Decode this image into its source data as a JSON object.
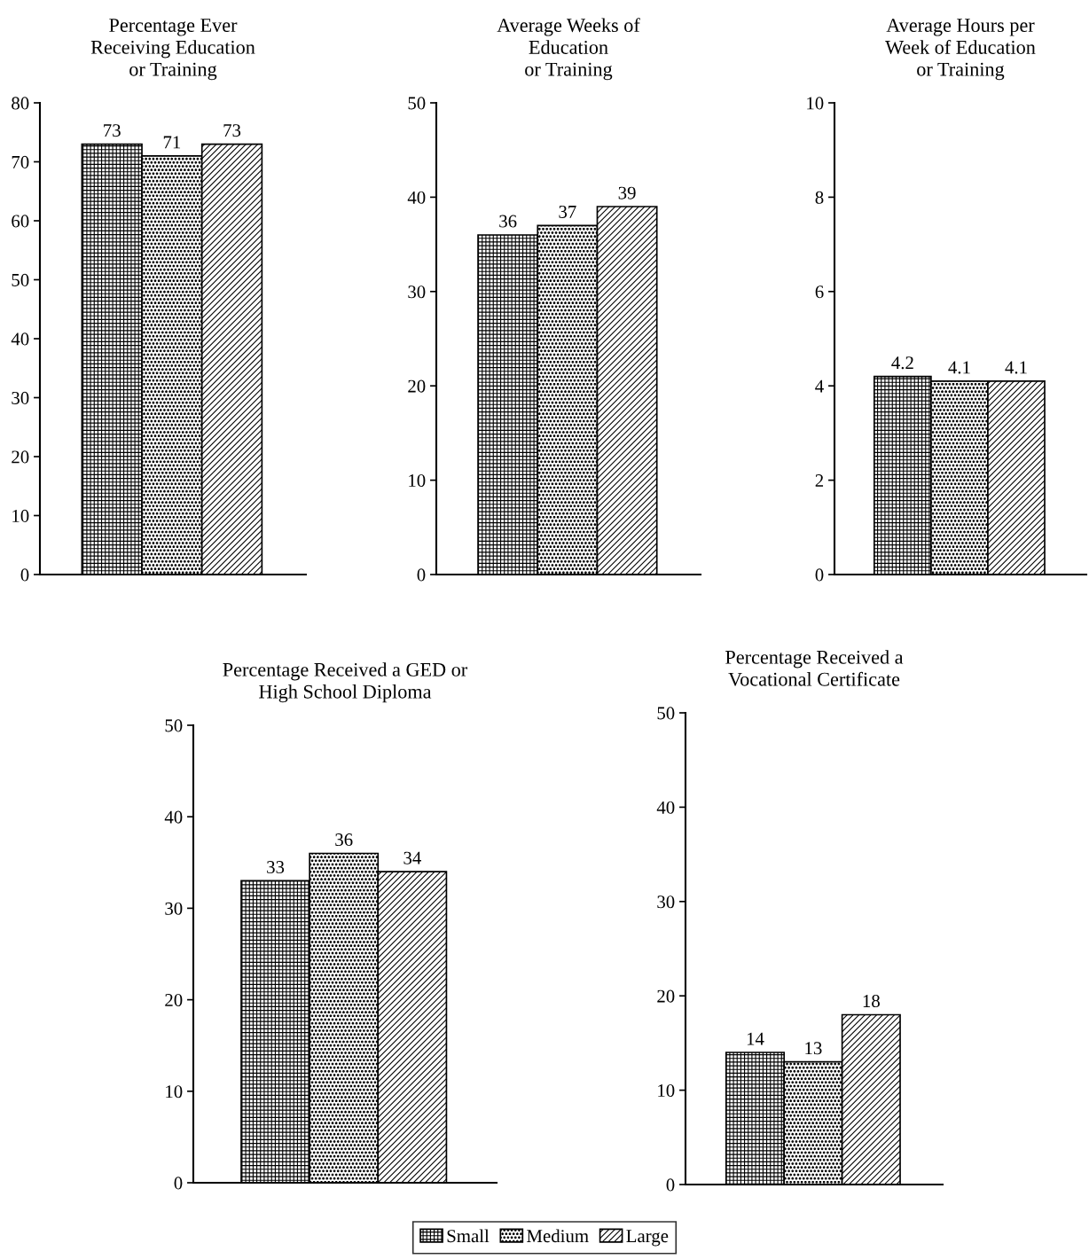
{
  "chart_data": [
    {
      "type": "bar",
      "title": "Percentage Ever\nReceiving Education\nor Training",
      "categories": [
        null
      ],
      "series": [
        {
          "name": "Small",
          "color": "#000000",
          "values": [
            73
          ]
        },
        {
          "name": "Medium",
          "color": "#000000",
          "values": [
            71
          ]
        },
        {
          "name": "Large",
          "color": "#000000",
          "values": [
            73
          ]
        }
      ],
      "ylim": [
        0,
        80
      ],
      "yticks": [
        0,
        10,
        20,
        30,
        40,
        50,
        60,
        70,
        80
      ],
      "data_labels": true,
      "tick_labels": "y",
      "legend": "bottom"
    },
    {
      "type": "bar",
      "title": "Average Weeks of\nEducation\nor Training",
      "categories": [
        null
      ],
      "series": [
        {
          "color": "#000000",
          "values": [
            36
          ]
        },
        {
          "color": "#000000",
          "values": [
            37
          ]
        },
        {
          "color": "#000000",
          "values": [
            39
          ]
        }
      ],
      "ylim": [
        0,
        50
      ],
      "yticks": [
        0,
        10,
        20,
        30,
        40,
        50
      ],
      "data_labels": true,
      "tick_labels": "y"
    },
    {
      "type": "bar",
      "title": "Average Hours per\nWeek of Education\nor Training",
      "categories": [
        null
      ],
      "series": [
        {
          "color": "#000000",
          "values": [
            4.2
          ]
        },
        {
          "color": "#000000",
          "values": [
            4.1
          ]
        },
        {
          "color": "#000000",
          "values": [
            4.1
          ]
        }
      ],
      "ylim": [
        0,
        10
      ],
      "yticks": [
        0,
        2,
        4,
        6,
        8,
        10
      ],
      "data_labels": true,
      "tick_labels": "y"
    },
    {
      "type": "bar",
      "title": "Percentage Received a GED or\nHigh School Diploma",
      "categories": [
        null
      ],
      "series": [
        {
          "color": "#000000",
          "values": [
            33
          ]
        },
        {
          "color": "#000000",
          "values": [
            36
          ]
        },
        {
          "color": "#000000",
          "values": [
            34
          ]
        }
      ],
      "ylim": [
        0,
        50
      ],
      "yticks": [
        0,
        10,
        20,
        30,
        40,
        50
      ],
      "data_labels": true,
      "tick_labels": "y"
    },
    {
      "type": "bar",
      "title": "Percentage Received a\nVocational Certificate",
      "categories": [
        null
      ],
      "series": [
        {
          "color": "#000000",
          "values": [
            14
          ]
        },
        {
          "color": "#000000",
          "values": [
            13
          ]
        },
        {
          "color": "#000000",
          "values": [
            18
          ]
        }
      ],
      "ylim": [
        0,
        50
      ],
      "yticks": [
        0,
        10,
        20,
        30,
        40,
        50
      ],
      "data_labels": true,
      "tick_labels": "y"
    }
  ]
}
